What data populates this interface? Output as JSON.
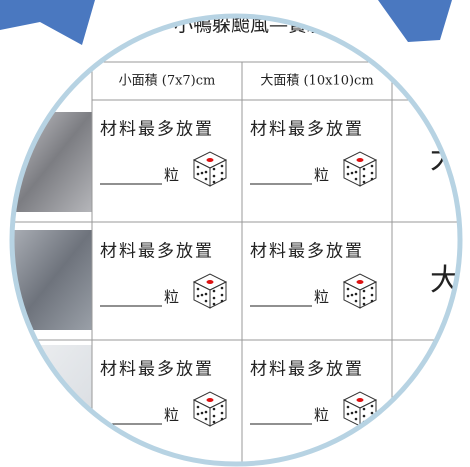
{
  "header": {
    "title": "小鴨躲颱風—實驗"
  },
  "table": {
    "columns": [
      "小面積 (7x7)cm",
      "大面積 (10x10)cm"
    ],
    "rows": [
      [
        "材料最多放置",
        "粒",
        "材料最多放置",
        "粒",
        "大"
      ],
      [
        "材料最多放置",
        "粒",
        "材料最多放置",
        "粒",
        "大"
      ],
      [
        "材料最多放置",
        "粒",
        "材料最多放置",
        "粒"
      ]
    ]
  }
}
